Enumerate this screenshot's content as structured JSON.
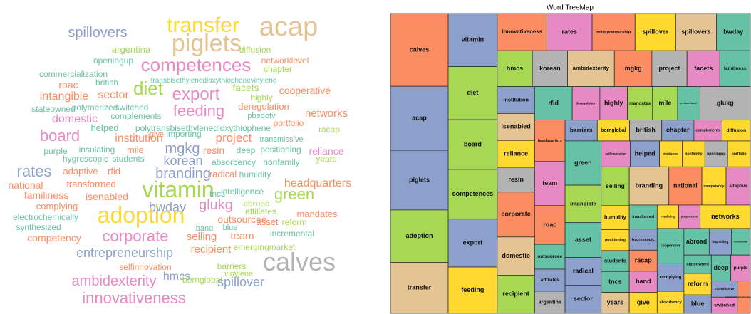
{
  "chart_data": [
    {
      "type": "wordcloud",
      "words": [
        "spillovers",
        "transfer",
        "acap",
        "piglets",
        "argentina",
        "diffusion",
        "openingup",
        "networklevel",
        "chapter",
        "competences",
        "commercialization",
        "roac",
        "british",
        "transbisethylenedioxythiophenevinylene",
        "facets",
        "cooperative",
        "intangible",
        "sector",
        "diet",
        "export",
        "highly",
        "stateowned",
        "polymerized",
        "switched",
        "deregulation",
        "networks",
        "complements",
        "pbedotv",
        "domestic",
        "feeding",
        "portfolio",
        "helped",
        "polytransbisethylenedioxythiophene",
        "racap",
        "board",
        "institution",
        "give",
        "importing",
        "project",
        "transmissive",
        "purple",
        "insulating",
        "mile",
        "mgkg",
        "resin",
        "deep",
        "positioning",
        "reliance",
        "hygroscopic",
        "students",
        "korean",
        "absorbency",
        "nonfamily",
        "years",
        "rates",
        "adaptive",
        "rfid",
        "branding",
        "radical",
        "humidity",
        "national",
        "transformed",
        "headquarters",
        "familiness",
        "isenabled",
        "vitamin",
        "tncs",
        "intelligence",
        "green",
        "complying",
        "bwday",
        "glukg",
        "abroad",
        "affiliates",
        "electrochemically",
        "adoption",
        "outsourcee",
        "asset",
        "mandates",
        "synthesized",
        "band",
        "blue",
        "reform",
        "competency",
        "corporate",
        "selling",
        "team",
        "incremental",
        "emergingmarket",
        "recipient",
        "entrepreneurship",
        "selfinnovation",
        "barriers",
        "vinylene",
        "calves",
        "hmcs",
        "bornglobal",
        "ambidexterity",
        "spillover",
        "innovativeness"
      ],
      "values": [
        20,
        30,
        38,
        34,
        13,
        12,
        12,
        12,
        12,
        26,
        12,
        14,
        12,
        10,
        14,
        14,
        16,
        16,
        26,
        24,
        12,
        12,
        12,
        12,
        13,
        15,
        12,
        11,
        16,
        22,
        12,
        13,
        12,
        12,
        22,
        16,
        11,
        12,
        17,
        11,
        12,
        12,
        13,
        20,
        14,
        12,
        12,
        14,
        12,
        12,
        18,
        12,
        12,
        12,
        22,
        13,
        13,
        20,
        13,
        12,
        14,
        13,
        16,
        14,
        14,
        32,
        12,
        12,
        22,
        13,
        18,
        20,
        12,
        12,
        12,
        32,
        14,
        13,
        13,
        12,
        11,
        11,
        12,
        14,
        22,
        15,
        15,
        12,
        12,
        15,
        18,
        12,
        12,
        11,
        36,
        16,
        12,
        20,
        18,
        22
      ],
      "colors": [
        "#8da0cb",
        "#ffd92f",
        "#e5c494",
        "#e5c494",
        "#a6d854",
        "#a6d854",
        "#66c2a5",
        "#fc8d62",
        "#a6d854",
        "#e78ac3",
        "#66c2a5",
        "#fc8d62",
        "#66c2a5",
        "#66c2a5",
        "#a6d854",
        "#fc8d62",
        "#fc8d62",
        "#fc8d62",
        "#a6d854",
        "#e78ac3",
        "#a6d854",
        "#66c2a5",
        "#66c2a5",
        "#66c2a5",
        "#fc8d62",
        "#fc8d62",
        "#66c2a5",
        "#66c2a5",
        "#e78ac3",
        "#e78ac3",
        "#fc8d62",
        "#66c2a5",
        "#66c2a5",
        "#a6d854",
        "#e78ac3",
        "#fc8d62",
        "#fc8d62",
        "#66c2a5",
        "#fc8d62",
        "#66c2a5",
        "#66c2a5",
        "#66c2a5",
        "#fc8d62",
        "#8da0cb",
        "#fc8d62",
        "#66c2a5",
        "#66c2a5",
        "#e78ac3",
        "#66c2a5",
        "#66c2a5",
        "#8da0cb",
        "#66c2a5",
        "#66c2a5",
        "#a6d854",
        "#8da0cb",
        "#fc8d62",
        "#fc8d62",
        "#8da0cb",
        "#fc8d62",
        "#66c2a5",
        "#fc8d62",
        "#fc8d62",
        "#fc8d62",
        "#fc8d62",
        "#fc8d62",
        "#a6d854",
        "#66c2a5",
        "#66c2a5",
        "#a6d854",
        "#fc8d62",
        "#8da0cb",
        "#e78ac3",
        "#a6d854",
        "#a6d854",
        "#66c2a5",
        "#ffd92f",
        "#fc8d62",
        "#fc8d62",
        "#fc8d62",
        "#66c2a5",
        "#66c2a5",
        "#66c2a5",
        "#a6d854",
        "#fc8d62",
        "#e78ac3",
        "#fc8d62",
        "#fc8d62",
        "#66c2a5",
        "#a6d854",
        "#fc8d62",
        "#8da0cb",
        "#fc8d62",
        "#a6d854",
        "#a6d854",
        "#b3b3b3",
        "#8da0cb",
        "#a6d854",
        "#e78ac3",
        "#8da0cb",
        "#e78ac3"
      ]
    },
    {
      "type": "treemap",
      "title": "Word TreeMap",
      "labels": [
        "calves",
        "acap",
        "piglets",
        "adoption",
        "transfer",
        "vitamin",
        "diet",
        "board",
        "competences",
        "export",
        "feeding",
        "innovativeness",
        "rates",
        "entrepreneurship",
        "spillover",
        "spillovers",
        "bwday",
        "hmcs",
        "korean",
        "ambidexterity",
        "mgkg",
        "project",
        "facets",
        "familiness",
        "institution",
        "isenabled",
        "reliance",
        "resin",
        "corporate",
        "domestic",
        "recipient",
        "rfid",
        "deregulation",
        "highly",
        "mandates",
        "mile",
        "networklevel",
        "glukg",
        "headquarters",
        "team",
        "roac",
        "outsourcee",
        "affiliates",
        "argentina",
        "barriers",
        "bornglobal",
        "british",
        "chapter",
        "complements",
        "diffusion",
        "green",
        "intangible",
        "asset",
        "radical",
        "sector",
        "selfinnovation",
        "helped",
        "intelligence",
        "nonfamily",
        "openingup",
        "portfolio",
        "selling",
        "humidity",
        "positioning",
        "students",
        "tncs",
        "years",
        "branding",
        "national",
        "competency",
        "adaptive",
        "transformed",
        "hygroscopic",
        "racap",
        "band",
        "give",
        "insulating",
        "polymerized",
        "networks",
        "cooperative",
        "complying",
        "absorbency",
        "abroad",
        "importing",
        "incremental",
        "stateowned",
        "reform",
        "blue",
        "deep",
        "purple",
        "transmissive",
        "switched",
        "polytransbisethylenedioxythiophene"
      ],
      "values": [
        100,
        88,
        82,
        72,
        70,
        62,
        62,
        58,
        58,
        56,
        54,
        44,
        40,
        38,
        36,
        36,
        30,
        30,
        30,
        40,
        32,
        30,
        28,
        26,
        24,
        24,
        24,
        22,
        40,
        34,
        34,
        30,
        22,
        22,
        20,
        20,
        18,
        40,
        30,
        32,
        28,
        18,
        16,
        16,
        16,
        16,
        16,
        16,
        14,
        14,
        38,
        32,
        30,
        24,
        24,
        18,
        18,
        14,
        14,
        14,
        14,
        26,
        16,
        14,
        14,
        14,
        14,
        36,
        30,
        22,
        22,
        16,
        14,
        14,
        14,
        14,
        12,
        12,
        28,
        22,
        18,
        14,
        16,
        14,
        12,
        12,
        14,
        12,
        12,
        12,
        10,
        10,
        10
      ],
      "colors": [
        "#fc8d62",
        "#8da0cb",
        "#8da0cb",
        "#a6d854",
        "#e5c494",
        "#8da0cb",
        "#a6d854",
        "#a6d854",
        "#a6d854",
        "#8da0cb",
        "#ffd92f",
        "#fc8d62",
        "#e78ac3",
        "#fc8d62",
        "#ffd92f",
        "#e5c494",
        "#66c2a5",
        "#a6d854",
        "#b3b3b3",
        "#e5c494",
        "#fc8d62",
        "#b3b3b3",
        "#e78ac3",
        "#66c2a5",
        "#8da0cb",
        "#e5c494",
        "#ffd92f",
        "#b3b3b3",
        "#fc8d62",
        "#e5c494",
        "#a6d854",
        "#66c2a5",
        "#e78ac3",
        "#e78ac3",
        "#a6d854",
        "#a6d854",
        "#66c2a5",
        "#b3b3b3",
        "#fc8d62",
        "#e78ac3",
        "#fc8d62",
        "#66c2a5",
        "#8da0cb",
        "#b3b3b3",
        "#8da0cb",
        "#ffd92f",
        "#b3b3b3",
        "#8da0cb",
        "#e78ac3",
        "#ffd92f",
        "#66c2a5",
        "#a6d854",
        "#66c2a5",
        "#8da0cb",
        "#8da0cb",
        "#e78ac3",
        "#8da0cb",
        "#ffd92f",
        "#ffd92f",
        "#b3b3b3",
        "#ffd92f",
        "#a6d854",
        "#ffd92f",
        "#ffd92f",
        "#66c2a5",
        "#66c2a5",
        "#e5c494",
        "#e5c494",
        "#fc8d62",
        "#ffd92f",
        "#e78ac3",
        "#66c2a5",
        "#8da0cb",
        "#fc8d62",
        "#e78ac3",
        "#ffd92f",
        "#ffd92f",
        "#e78ac3",
        "#ffd92f",
        "#66c2a5",
        "#8da0cb",
        "#ffd92f",
        "#66c2a5",
        "#8da0cb",
        "#66c2a5",
        "#66c2a5",
        "#ffd92f",
        "#8da0cb",
        "#66c2a5",
        "#e78ac3",
        "#8da0cb",
        "#e78ac3",
        "#fc8d62"
      ]
    }
  ]
}
